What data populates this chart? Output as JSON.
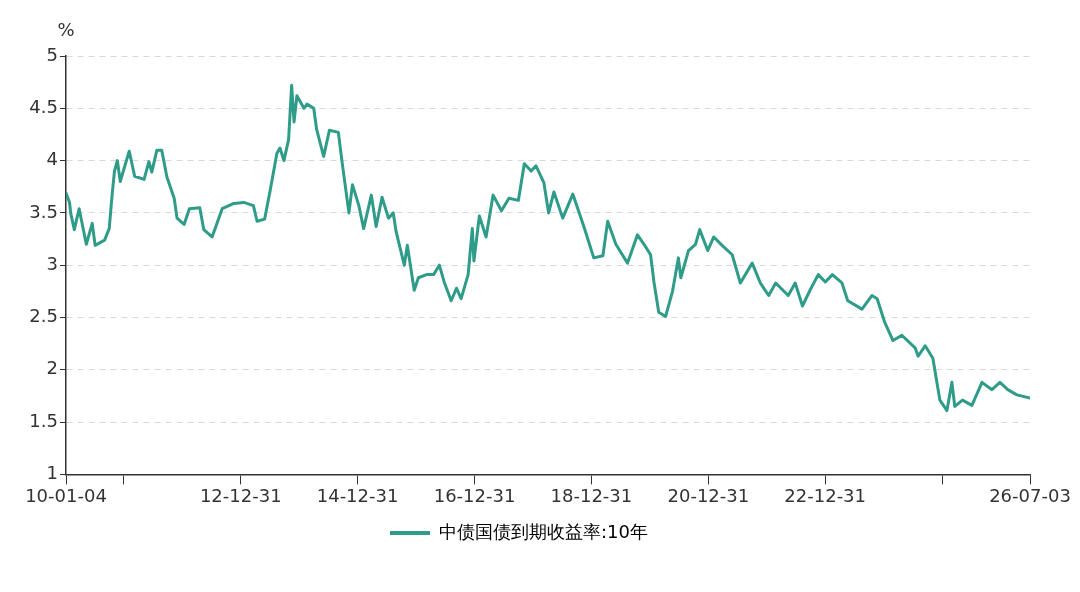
{
  "chart_data": {
    "type": "line",
    "ylabel": "%",
    "legend": "bottom",
    "grid": "y",
    "line_style": "solid",
    "marker": "none",
    "xlim": [
      "2010-01-04",
      "2026-07-03"
    ],
    "xticks": [
      {
        "value": "2010-01-04",
        "label": "10-01-04"
      },
      {
        "value": "2010-12-31",
        "label": null
      },
      {
        "value": "2012-12-31",
        "label": "12-12-31"
      },
      {
        "value": "2014-12-31",
        "label": "14-12-31"
      },
      {
        "value": "2016-12-31",
        "label": "16-12-31"
      },
      {
        "value": "2018-12-31",
        "label": "18-12-31"
      },
      {
        "value": "2020-12-31",
        "label": "20-12-31"
      },
      {
        "value": "2022-12-31",
        "label": "22-12-31"
      },
      {
        "value": "2024-12-31",
        "label": null
      },
      {
        "value": "2026-07-03",
        "label": "26-07-03"
      }
    ],
    "ylim": [
      1,
      5
    ],
    "yticks": [
      1,
      1.5,
      2,
      2.5,
      3,
      3.5,
      4,
      4.5,
      5
    ],
    "series": [
      {
        "name": "中债国债到期收益率:10年",
        "color": "#2e9c88",
        "x": [
          "2010-01-04",
          "2010-01-26",
          "2010-02-03",
          "2010-02-25",
          "2010-03-27",
          "2010-05-11",
          "2010-06-17",
          "2010-07-05",
          "2010-09-02",
          "2010-10-01",
          "2010-10-19",
          "2010-11-03",
          "2010-11-21",
          "2010-12-09",
          "2011-02-03",
          "2011-03-09",
          "2011-05-07",
          "2011-06-06",
          "2011-06-24",
          "2011-07-26",
          "2011-08-25",
          "2011-09-27",
          "2011-11-11",
          "2011-11-29",
          "2012-01-12",
          "2012-02-14",
          "2012-04-19",
          "2012-05-14",
          "2012-07-05",
          "2012-09-06",
          "2012-11-18",
          "2013-01-19",
          "2013-03-20",
          "2013-04-12",
          "2013-05-29",
          "2013-07-01",
          "2013-08-14",
          "2013-09-02",
          "2013-09-27",
          "2013-10-26",
          "2013-11-14",
          "2013-11-29",
          "2013-12-17",
          "2014-01-30",
          "2014-02-18",
          "2014-04-01",
          "2014-04-19",
          "2014-06-02",
          "2014-07-08",
          "2014-09-02",
          "2014-09-24",
          "2014-11-07",
          "2014-11-29",
          "2015-01-08",
          "2015-02-07",
          "2015-03-27",
          "2015-04-26",
          "2015-06-02",
          "2015-07-12",
          "2015-08-11",
          "2015-08-29",
          "2015-10-19",
          "2015-11-07",
          "2015-12-20",
          "2016-01-15",
          "2016-03-06",
          "2016-04-19",
          "2016-05-25",
          "2016-06-24",
          "2016-08-07",
          "2016-09-09",
          "2016-10-08",
          "2016-11-21",
          "2016-12-17",
          "2016-12-27",
          "2017-01-30",
          "2017-03-13",
          "2017-04-26",
          "2017-06-17",
          "2017-08-03",
          "2017-10-01",
          "2017-11-07",
          "2017-12-20",
          "2018-01-19",
          "2018-03-09",
          "2018-04-08",
          "2018-05-11",
          "2018-07-05",
          "2018-09-06",
          "2018-11-14",
          "2019-01-15",
          "2019-03-13",
          "2019-04-12",
          "2019-06-02",
          "2019-08-14",
          "2019-10-15",
          "2019-11-25",
          "2020-01-05",
          "2020-01-26",
          "2020-02-25",
          "2020-04-08",
          "2020-05-21",
          "2020-06-27",
          "2020-07-12",
          "2020-08-29",
          "2020-10-12",
          "2020-11-07",
          "2020-12-27",
          "2021-02-03",
          "2021-03-27",
          "2021-05-29",
          "2021-07-19",
          "2021-10-01",
          "2021-11-21",
          "2022-01-12",
          "2022-02-25",
          "2022-05-14",
          "2022-06-27",
          "2022-08-11",
          "2022-09-27",
          "2022-11-18",
          "2023-01-01",
          "2023-02-14",
          "2023-04-15",
          "2023-05-21",
          "2023-08-18",
          "2023-10-19",
          "2023-11-21",
          "2024-01-08",
          "2024-02-28",
          "2024-04-23",
          "2024-07-15",
          "2024-08-03",
          "2024-09-16",
          "2024-11-03",
          "2024-12-17",
          "2025-01-30",
          "2025-03-02",
          "2025-03-20",
          "2025-05-07",
          "2025-07-05",
          "2025-09-06",
          "2025-11-07",
          "2025-12-27",
          "2026-02-14",
          "2026-04-12",
          "2026-07-03"
        ],
        "values": [
          3.69,
          3.6,
          3.49,
          3.34,
          3.54,
          3.2,
          3.4,
          3.19,
          3.24,
          3.35,
          3.67,
          3.9,
          4.0,
          3.8,
          4.09,
          3.85,
          3.82,
          3.99,
          3.89,
          4.1,
          4.1,
          3.84,
          3.64,
          3.45,
          3.39,
          3.54,
          3.55,
          3.34,
          3.27,
          3.54,
          3.59,
          3.6,
          3.57,
          3.42,
          3.44,
          3.7,
          4.07,
          4.12,
          4.0,
          4.2,
          4.72,
          4.37,
          4.62,
          4.5,
          4.54,
          4.5,
          4.3,
          4.04,
          4.29,
          4.27,
          4.0,
          3.5,
          3.77,
          3.57,
          3.35,
          3.67,
          3.37,
          3.65,
          3.45,
          3.5,
          3.32,
          3.0,
          3.19,
          2.76,
          2.88,
          2.91,
          2.91,
          3.0,
          2.84,
          2.66,
          2.78,
          2.68,
          2.91,
          3.35,
          3.04,
          3.47,
          3.27,
          3.67,
          3.52,
          3.64,
          3.62,
          3.97,
          3.9,
          3.95,
          3.79,
          3.5,
          3.7,
          3.45,
          3.68,
          3.37,
          3.07,
          3.09,
          3.42,
          3.2,
          3.02,
          3.29,
          3.2,
          3.1,
          2.84,
          2.55,
          2.51,
          2.75,
          3.07,
          2.88,
          3.14,
          3.2,
          3.34,
          3.14,
          3.27,
          3.19,
          3.1,
          2.83,
          3.02,
          2.83,
          2.71,
          2.83,
          2.71,
          2.83,
          2.61,
          2.76,
          2.91,
          2.84,
          2.91,
          2.83,
          2.66,
          2.58,
          2.71,
          2.68,
          2.45,
          2.28,
          2.33,
          2.21,
          2.13,
          2.23,
          2.11,
          1.71,
          1.61,
          1.88,
          1.65,
          1.71,
          1.66,
          1.88,
          1.81,
          1.88,
          1.81,
          1.76,
          1.73
        ]
      }
    ]
  }
}
